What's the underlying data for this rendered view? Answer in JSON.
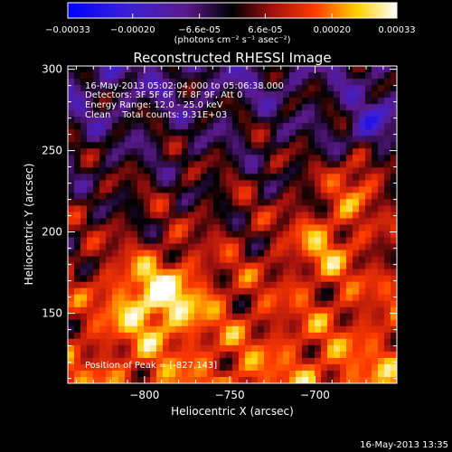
{
  "chart_data": {
    "type": "heatmap",
    "title": "Reconstructed RHESSI Image",
    "xlabel": "Heliocentric X (arcsec)",
    "ylabel": "Heliocentric Y (arcsec)",
    "xlim": [
      -845,
      -652
    ],
    "ylim": [
      107,
      302
    ],
    "x_ticks": [
      -800,
      -750,
      -700
    ],
    "y_ticks": [
      150,
      200,
      250,
      300
    ],
    "colorbar": {
      "label": "(photons cm⁻² s⁻¹ asec⁻²)",
      "range": [
        -0.00033,
        0.00033
      ],
      "tick_values": [
        -0.00033,
        -0.0002,
        -6.6e-05,
        6.6e-05,
        0.0002,
        0.00033
      ],
      "tick_labels": [
        "-0.00033",
        "-0.00020",
        "-6.6e-05",
        "6.6e-05",
        "0.00020",
        "0.00033"
      ],
      "colormap": "blue-purple-black-red-orange-yellow-white"
    },
    "annotations": [
      "16-May-2013 05:02:04.000 to 05:06:38.000",
      "Detectors: 3F 5F 6F 7F 8F 9F, Att 0",
      "Energy Range: 12.0 - 25.0 keV",
      "Clean    Total counts: 9.31E+03",
      "Position of Peak = [-827,143]"
    ],
    "peak": [
      -827,
      143
    ]
  },
  "timestamp": "16-May-2013 13:35"
}
